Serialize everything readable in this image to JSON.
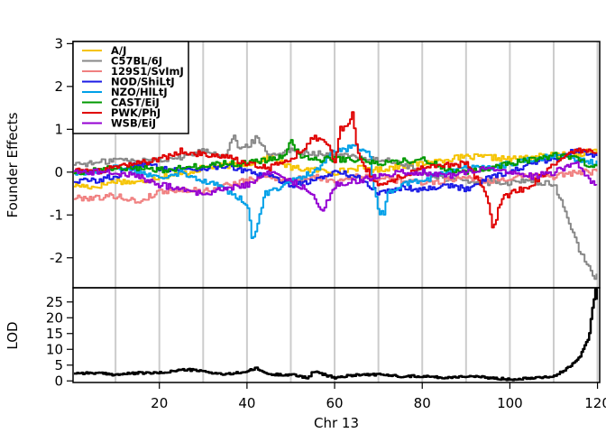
{
  "chart_data": [
    {
      "type": "line",
      "ylabel": "Founder Effects",
      "xlim": [
        0.3,
        120.5
      ],
      "ylim": [
        -2.7,
        3.05
      ],
      "yticks": [
        -2,
        -1,
        0,
        1,
        2,
        3
      ],
      "vertical_gridlines": [
        10,
        20,
        30,
        40,
        50,
        60,
        70,
        80,
        90,
        100,
        110,
        120
      ],
      "legend_position": "top-left",
      "series": [
        {
          "name": "A/J",
          "color": "#F5C300",
          "x": [
            0.5,
            5,
            10,
            15,
            20,
            25,
            30,
            35,
            40,
            45,
            50,
            55,
            60,
            65,
            70,
            75,
            80,
            85,
            90,
            95,
            100,
            105,
            110,
            115,
            118,
            120
          ],
          "y": [
            -0.3,
            -0.35,
            -0.2,
            -0.25,
            -0.1,
            -0.05,
            0.1,
            0.15,
            0.2,
            0.35,
            0.1,
            0.05,
            0.0,
            0.1,
            0.05,
            0.15,
            0.2,
            0.3,
            0.35,
            0.35,
            0.3,
            0.35,
            0.4,
            0.4,
            0.5,
            0.5
          ]
        },
        {
          "name": "C57BL/6J",
          "color": "#888888",
          "x": [
            0.5,
            5,
            10,
            15,
            20,
            25,
            30,
            35,
            37,
            38,
            40,
            42,
            45,
            50,
            55,
            60,
            65,
            70,
            75,
            80,
            85,
            90,
            95,
            100,
            105,
            110,
            112,
            114,
            116,
            118,
            119,
            120
          ],
          "y": [
            0.2,
            0.2,
            0.3,
            0.25,
            0.3,
            0.35,
            0.5,
            0.4,
            0.9,
            0.5,
            0.6,
            0.8,
            0.4,
            0.5,
            0.45,
            0.4,
            0.35,
            0.3,
            0.2,
            0.0,
            -0.15,
            -0.2,
            -0.25,
            -0.25,
            -0.2,
            -0.3,
            -0.8,
            -1.3,
            -1.9,
            -2.2,
            -2.5,
            -2.4
          ]
        },
        {
          "name": "129S1/SvImJ",
          "color": "#F08080",
          "x": [
            0.5,
            5,
            10,
            15,
            20,
            25,
            30,
            35,
            40,
            45,
            50,
            55,
            60,
            65,
            70,
            75,
            80,
            85,
            90,
            95,
            100,
            105,
            110,
            115,
            120
          ],
          "y": [
            -0.6,
            -0.6,
            -0.55,
            -0.7,
            -0.45,
            -0.4,
            -0.45,
            -0.3,
            -0.2,
            -0.1,
            -0.2,
            -0.1,
            -0.2,
            -0.1,
            -0.15,
            -0.2,
            -0.25,
            -0.2,
            -0.1,
            -0.2,
            -0.15,
            -0.1,
            -0.1,
            0.0,
            0.0
          ]
        },
        {
          "name": "NOD/ShiLtJ",
          "color": "#1A1AE6",
          "x": [
            0.5,
            5,
            10,
            15,
            20,
            25,
            30,
            35,
            40,
            45,
            50,
            55,
            60,
            65,
            70,
            75,
            80,
            85,
            90,
            95,
            100,
            105,
            110,
            115,
            120
          ],
          "y": [
            -0.2,
            -0.2,
            -0.1,
            0.2,
            0.1,
            0.05,
            0.1,
            0.15,
            0.0,
            -0.1,
            -0.3,
            -0.2,
            0.0,
            -0.1,
            -0.5,
            -0.35,
            -0.4,
            -0.3,
            -0.4,
            -0.1,
            0.0,
            0.2,
            0.3,
            0.5,
            0.4
          ]
        },
        {
          "name": "NZO/HlLtJ",
          "color": "#00A0E8",
          "x": [
            0.5,
            5,
            10,
            15,
            20,
            25,
            30,
            35,
            38,
            40,
            41,
            42,
            44,
            46,
            50,
            55,
            60,
            65,
            68,
            69,
            70,
            71,
            72,
            75,
            80,
            85,
            90,
            95,
            100,
            105,
            110,
            115,
            120
          ],
          "y": [
            0.0,
            0.0,
            0.1,
            0.0,
            -0.1,
            0.0,
            -0.2,
            -0.4,
            -0.6,
            -0.8,
            -1.5,
            -1.4,
            -0.5,
            -0.4,
            -0.2,
            0.0,
            0.5,
            0.6,
            0.4,
            -0.5,
            -0.9,
            -1.0,
            -0.5,
            -0.3,
            -0.2,
            0.0,
            0.1,
            0.1,
            0.2,
            0.3,
            0.4,
            0.3,
            0.2
          ]
        },
        {
          "name": "CAST/EiJ",
          "color": "#009900",
          "x": [
            0.5,
            5,
            10,
            15,
            20,
            25,
            30,
            35,
            40,
            45,
            48,
            50,
            52,
            55,
            60,
            65,
            70,
            75,
            80,
            85,
            90,
            95,
            100,
            105,
            110,
            115,
            120
          ],
          "y": [
            0.0,
            0.05,
            0.1,
            0.1,
            0.05,
            0.1,
            0.15,
            0.2,
            0.2,
            0.3,
            0.35,
            0.7,
            0.4,
            0.3,
            0.3,
            0.3,
            0.2,
            0.25,
            0.3,
            0.1,
            0.0,
            0.1,
            0.2,
            0.3,
            0.4,
            0.3,
            0.1
          ]
        },
        {
          "name": "PWK/PhJ",
          "color": "#E00000",
          "x": [
            0.5,
            5,
            10,
            15,
            20,
            25,
            30,
            35,
            40,
            45,
            50,
            53,
            55,
            58,
            60,
            61,
            63,
            64,
            65,
            66,
            70,
            75,
            80,
            85,
            90,
            94,
            95,
            96,
            97,
            98,
            100,
            105,
            110,
            115,
            120
          ],
          "y": [
            0.05,
            0.0,
            0.1,
            0.2,
            0.3,
            0.5,
            0.4,
            0.35,
            0.2,
            0.1,
            0.3,
            0.6,
            0.8,
            0.7,
            0.2,
            1.0,
            1.1,
            1.4,
            0.5,
            0.2,
            -0.3,
            -0.1,
            0.1,
            0.15,
            0.2,
            -0.4,
            -0.7,
            -1.3,
            -1.0,
            -0.6,
            -0.5,
            -0.3,
            0.2,
            0.5,
            0.45
          ]
        },
        {
          "name": "WSB/EiJ",
          "color": "#9400D3",
          "x": [
            0.5,
            5,
            10,
            15,
            20,
            25,
            30,
            35,
            40,
            45,
            50,
            55,
            57,
            60,
            65,
            70,
            75,
            80,
            85,
            90,
            95,
            100,
            105,
            110,
            115,
            118,
            120
          ],
          "y": [
            0.05,
            0.0,
            0.0,
            -0.1,
            -0.3,
            -0.4,
            -0.5,
            -0.4,
            -0.3,
            0.0,
            -0.2,
            -0.5,
            -0.9,
            -0.3,
            -0.2,
            -0.1,
            0.0,
            0.0,
            -0.1,
            0.0,
            0.1,
            0.0,
            -0.1,
            0.0,
            0.2,
            -0.2,
            -0.25
          ]
        }
      ]
    },
    {
      "type": "line",
      "xlabel": "Chr 13",
      "ylabel": "LOD",
      "xlim": [
        0.3,
        120.5
      ],
      "ylim": [
        -0.5,
        29.5
      ],
      "yticks": [
        0,
        5,
        10,
        15,
        20,
        25
      ],
      "xticks": [
        20,
        40,
        60,
        80,
        100,
        120
      ],
      "xtick_labels": [
        "20",
        "40",
        "60",
        "80",
        "100",
        "120"
      ],
      "vertical_gridlines": [
        10,
        20,
        30,
        40,
        50,
        60,
        70,
        80,
        90,
        100,
        110,
        120
      ],
      "series": [
        {
          "color": "#000000",
          "x": [
            0.5,
            5,
            10,
            15,
            20,
            25,
            27,
            30,
            35,
            40,
            42,
            45,
            50,
            54,
            55,
            60,
            65,
            70,
            75,
            80,
            85,
            90,
            95,
            100,
            105,
            110,
            112,
            114,
            115,
            116,
            117,
            118,
            118.5,
            119,
            119.5,
            120
          ],
          "y": [
            2.5,
            2.5,
            2.0,
            2.5,
            2.5,
            3.5,
            3.5,
            3.0,
            2.0,
            3.0,
            4.0,
            2.0,
            2.0,
            1.0,
            3.0,
            1.0,
            2.0,
            2.0,
            1.5,
            1.5,
            1.0,
            1.5,
            1.0,
            0.5,
            1.0,
            1.5,
            3.0,
            5.0,
            6.0,
            8.0,
            11.0,
            14.0,
            20.0,
            25.0,
            29.0,
            24.0
          ]
        }
      ]
    }
  ]
}
